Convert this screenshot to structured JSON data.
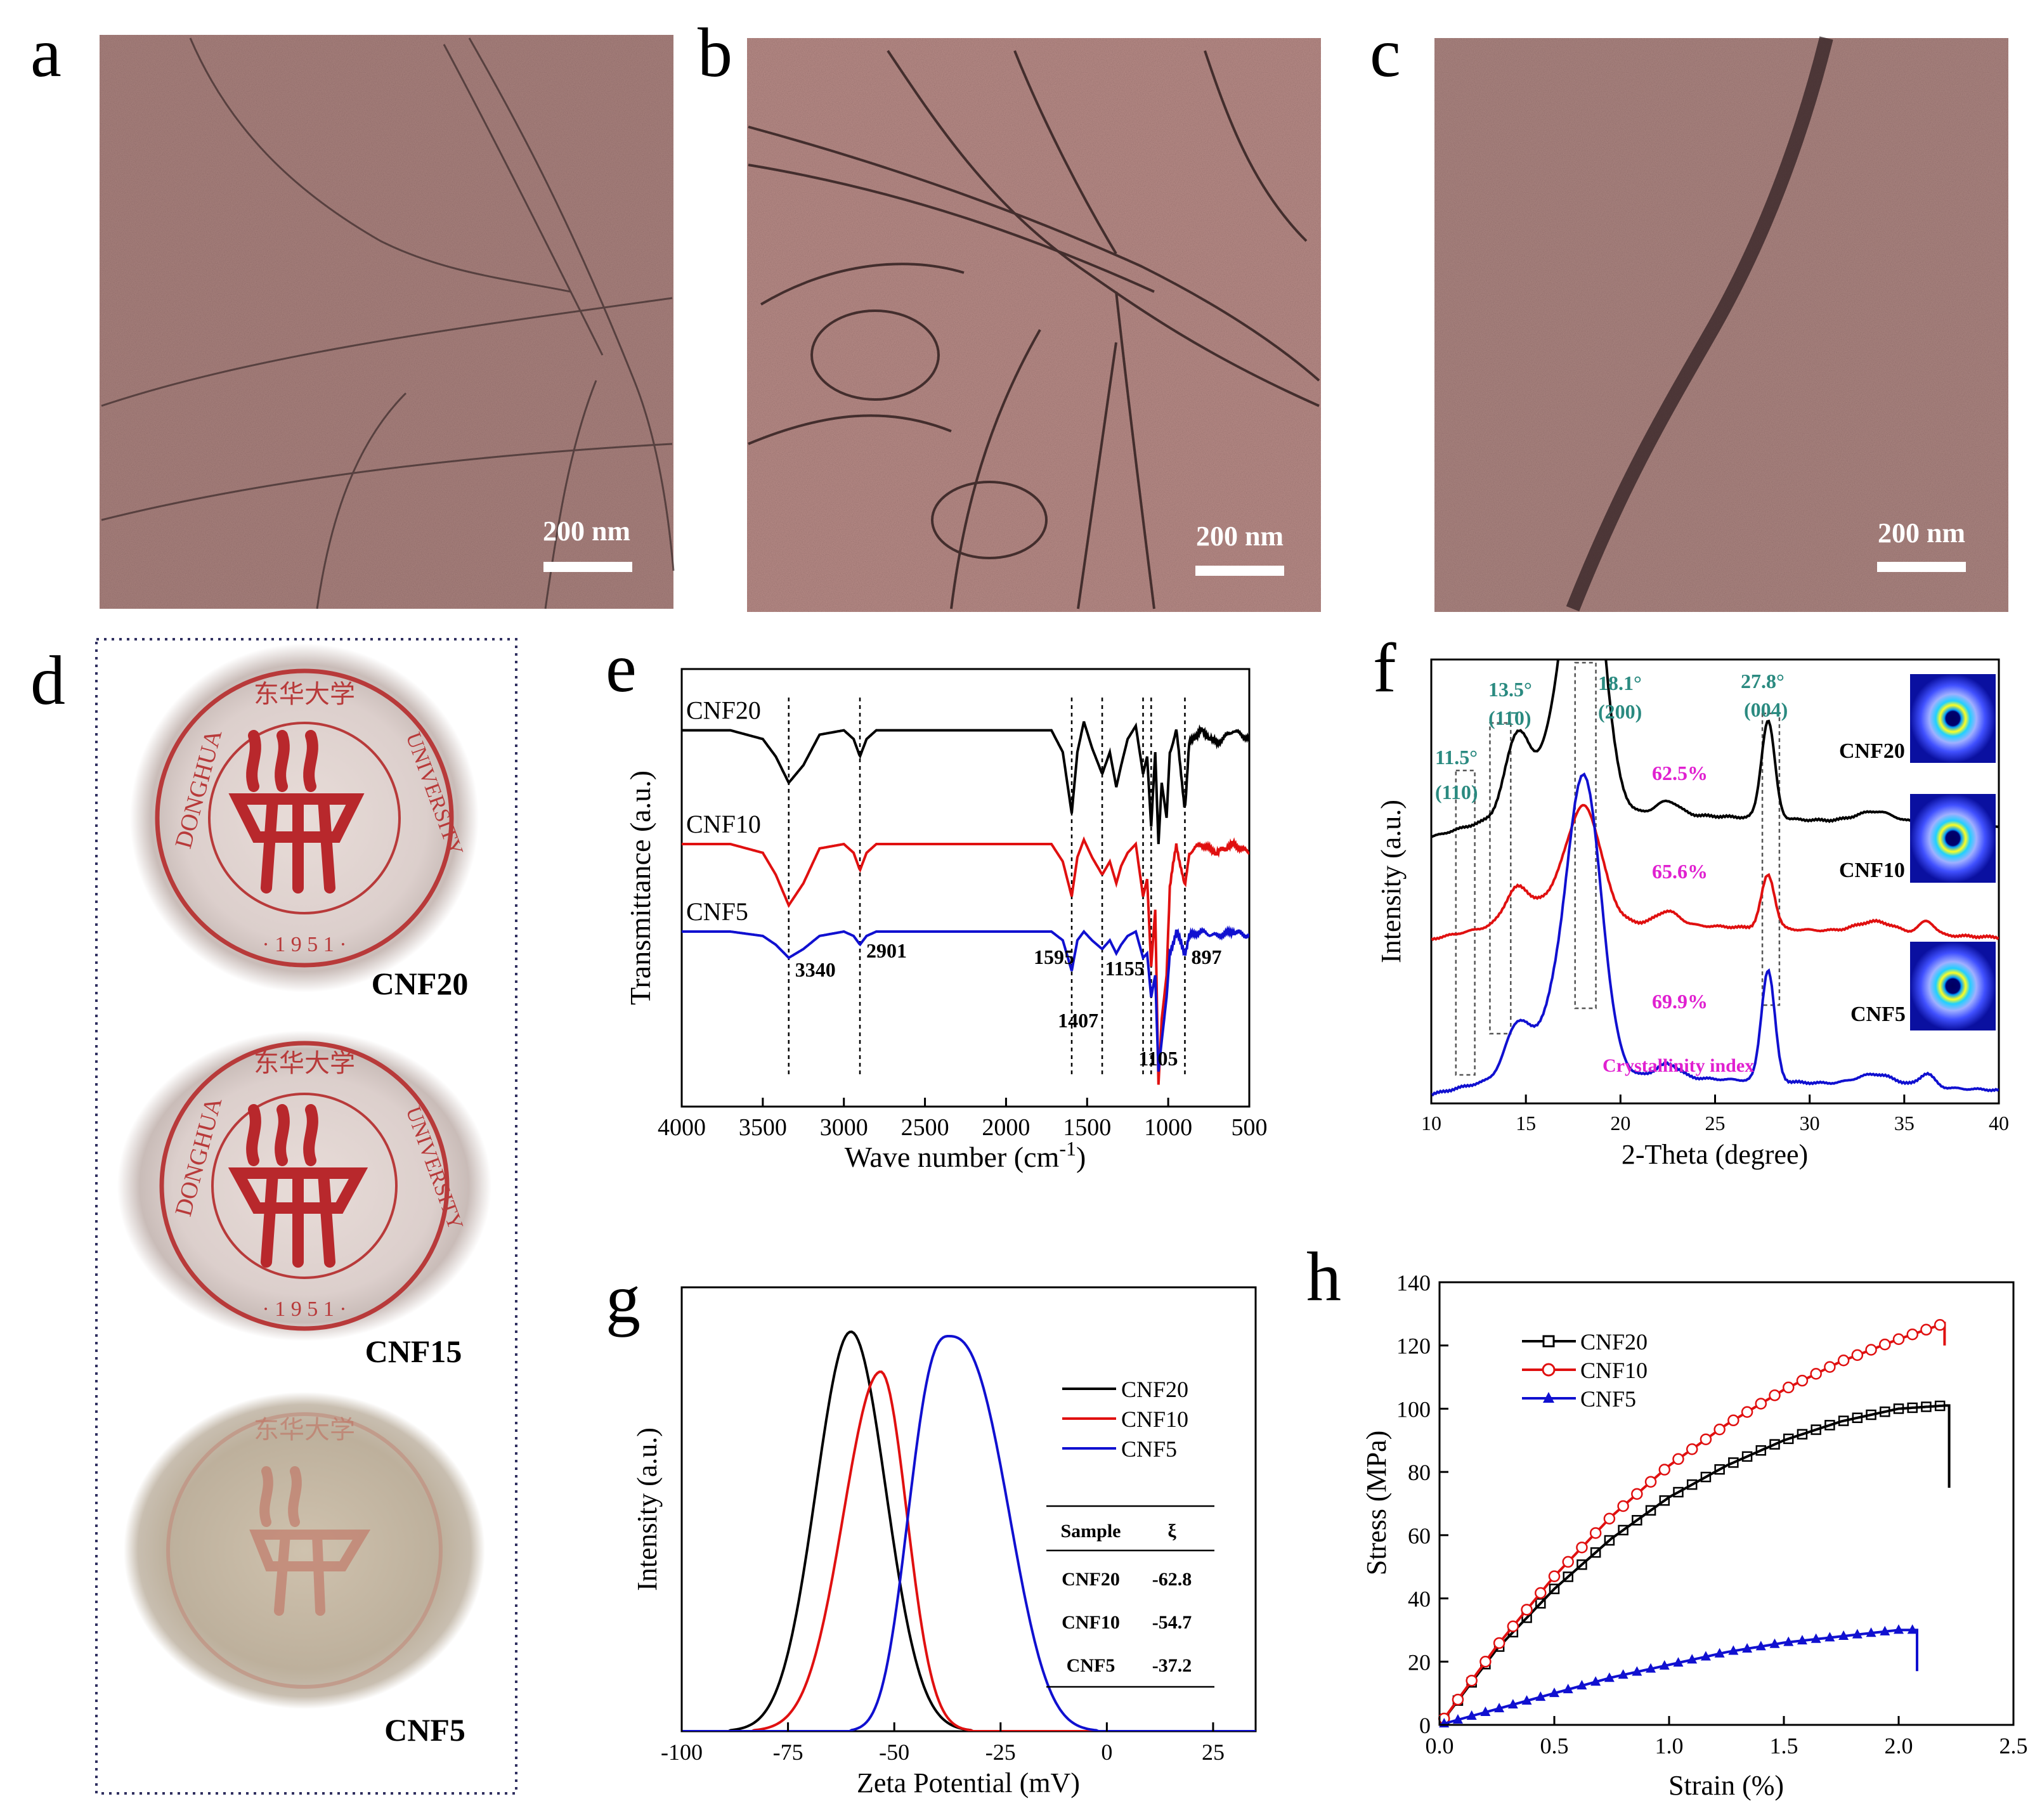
{
  "panel_letters": [
    "a",
    "b",
    "c",
    "d",
    "e",
    "f",
    "g",
    "h"
  ],
  "tem": [
    {
      "id": "a",
      "scale_bar": "200 nm"
    },
    {
      "id": "b",
      "scale_bar": "200 nm"
    },
    {
      "id": "c",
      "scale_bar": "200 nm"
    }
  ],
  "photos": {
    "items": [
      {
        "label": "CNF20",
        "seal_top": "东华大学",
        "seal_left": "DONGHUA",
        "seal_right": "UNIVERSITY",
        "seal_year": "· 1 9 5 1 ·"
      },
      {
        "label": "CNF15",
        "seal_top": "东华大学",
        "seal_left": "DONGHUA",
        "seal_right": "UNIVERSITY",
        "seal_year": "· 1 9 5 1 ·"
      },
      {
        "label": "CNF5",
        "seal_top": "东华大学",
        "seal_left": "",
        "seal_right": "",
        "seal_year": ""
      }
    ]
  },
  "chart_data": [
    {
      "panel": "e",
      "type": "line",
      "xlabel": "Wave number (cm",
      "xlabel_sup": "-1",
      "xlabel_close": ")",
      "ylabel": "Transmittance (a.u.)",
      "xlim": [
        4000,
        500
      ],
      "xticks": [
        4000,
        3500,
        3000,
        2500,
        2000,
        1500,
        1000,
        500
      ],
      "series": [
        {
          "name": "CNF20",
          "color": "#000000",
          "offset": 0.86,
          "profile": [
            [
              4000,
              0
            ],
            [
              3700,
              0
            ],
            [
              3500,
              -0.02
            ],
            [
              3420,
              -0.06
            ],
            [
              3340,
              -0.12
            ],
            [
              3250,
              -0.08
            ],
            [
              3150,
              -0.01
            ],
            [
              3000,
              0
            ],
            [
              2940,
              -0.02
            ],
            [
              2901,
              -0.06
            ],
            [
              2860,
              -0.02
            ],
            [
              2800,
              0
            ],
            [
              1720,
              0
            ],
            [
              1650,
              -0.05
            ],
            [
              1595,
              -0.19
            ],
            [
              1560,
              -0.05
            ],
            [
              1520,
              0.02
            ],
            [
              1470,
              -0.04
            ],
            [
              1407,
              -0.1
            ],
            [
              1360,
              -0.05
            ],
            [
              1320,
              -0.13
            ],
            [
              1290,
              -0.08
            ],
            [
              1250,
              -0.02
            ],
            [
              1200,
              0.01
            ],
            [
              1155,
              -0.1
            ],
            [
              1130,
              -0.06
            ],
            [
              1105,
              -0.22
            ],
            [
              1080,
              -0.05
            ],
            [
              1060,
              -0.26
            ],
            [
              1040,
              -0.12
            ],
            [
              1010,
              -0.2
            ],
            [
              990,
              -0.05
            ],
            [
              950,
              0.0
            ],
            [
              897,
              -0.18
            ],
            [
              870,
              -0.03
            ],
            [
              800,
              0
            ],
            [
              700,
              -0.03
            ],
            [
              600,
              0.0
            ],
            [
              500,
              -0.02
            ]
          ]
        },
        {
          "name": "CNF10",
          "color": "#e01010",
          "offset": 0.6,
          "profile": [
            [
              4000,
              0
            ],
            [
              3700,
              0
            ],
            [
              3500,
              -0.02
            ],
            [
              3420,
              -0.07
            ],
            [
              3340,
              -0.14
            ],
            [
              3250,
              -0.09
            ],
            [
              3150,
              -0.01
            ],
            [
              3000,
              0
            ],
            [
              2940,
              -0.02
            ],
            [
              2901,
              -0.06
            ],
            [
              2860,
              -0.02
            ],
            [
              2800,
              0
            ],
            [
              1720,
              0
            ],
            [
              1650,
              -0.04
            ],
            [
              1595,
              -0.12
            ],
            [
              1560,
              -0.03
            ],
            [
              1520,
              0.01
            ],
            [
              1470,
              -0.03
            ],
            [
              1407,
              -0.07
            ],
            [
              1360,
              -0.04
            ],
            [
              1320,
              -0.09
            ],
            [
              1290,
              -0.05
            ],
            [
              1250,
              -0.02
            ],
            [
              1200,
              0.0
            ],
            [
              1155,
              -0.12
            ],
            [
              1130,
              -0.08
            ],
            [
              1105,
              -0.28
            ],
            [
              1080,
              -0.15
            ],
            [
              1060,
              -0.55
            ],
            [
              1040,
              -0.4
            ],
            [
              1010,
              -0.3
            ],
            [
              990,
              -0.1
            ],
            [
              950,
              0.0
            ],
            [
              897,
              -0.1
            ],
            [
              870,
              -0.02
            ],
            [
              800,
              0
            ],
            [
              700,
              -0.02
            ],
            [
              600,
              0.0
            ],
            [
              500,
              -0.02
            ]
          ]
        },
        {
          "name": "CNF5",
          "color": "#1010d0",
          "offset": 0.4,
          "profile": [
            [
              4000,
              0
            ],
            [
              3700,
              0
            ],
            [
              3500,
              -0.01
            ],
            [
              3420,
              -0.03
            ],
            [
              3340,
              -0.06
            ],
            [
              3250,
              -0.04
            ],
            [
              3150,
              -0.01
            ],
            [
              3000,
              0
            ],
            [
              2940,
              -0.01
            ],
            [
              2901,
              -0.03
            ],
            [
              2860,
              -0.01
            ],
            [
              2800,
              0
            ],
            [
              1720,
              0
            ],
            [
              1650,
              -0.02
            ],
            [
              1595,
              -0.09
            ],
            [
              1560,
              -0.02
            ],
            [
              1520,
              0.0
            ],
            [
              1470,
              -0.02
            ],
            [
              1407,
              -0.04
            ],
            [
              1360,
              -0.02
            ],
            [
              1320,
              -0.05
            ],
            [
              1290,
              -0.03
            ],
            [
              1250,
              -0.01
            ],
            [
              1200,
              0.0
            ],
            [
              1155,
              -0.06
            ],
            [
              1130,
              -0.05
            ],
            [
              1105,
              -0.15
            ],
            [
              1080,
              -0.1
            ],
            [
              1060,
              -0.32
            ],
            [
              1040,
              -0.25
            ],
            [
              1010,
              -0.15
            ],
            [
              990,
              -0.05
            ],
            [
              950,
              0.0
            ],
            [
              897,
              -0.05
            ],
            [
              870,
              -0.01
            ],
            [
              800,
              0
            ],
            [
              700,
              -0.01
            ],
            [
              600,
              0.0
            ],
            [
              500,
              -0.01
            ]
          ]
        }
      ],
      "annotations": [
        {
          "text": "3340",
          "x": 3340
        },
        {
          "text": "2901",
          "x": 2901
        },
        {
          "text": "1595",
          "x": 1595
        },
        {
          "text": "1407",
          "x": 1407
        },
        {
          "text": "1155",
          "x": 1155
        },
        {
          "text": "1105",
          "x": 1105
        },
        {
          "text": "897",
          "x": 897
        }
      ],
      "vlines": [
        3340,
        2901,
        1595,
        1407,
        1155,
        1105,
        897
      ]
    },
    {
      "panel": "f",
      "type": "line",
      "xlabel": "2-Theta (degree)",
      "ylabel": "Intensity (a.u.)",
      "xlim": [
        10,
        40
      ],
      "xticks": [
        10,
        15,
        20,
        25,
        30,
        35,
        40
      ],
      "series": [
        {
          "name": "CNF20",
          "color": "#000000",
          "offset": 0.6,
          "peak_main": 0.75,
          "peak_15": 0.16,
          "peak_28": 0.22,
          "slope": 0.12
        },
        {
          "name": "CNF10",
          "color": "#e01010",
          "offset": 0.37,
          "peak_main": 0.25,
          "peak_15": 0.07,
          "peak_28": 0.12,
          "slope": 0.09
        },
        {
          "name": "CNF5",
          "color": "#1010d0",
          "offset": 0.02,
          "peak_main": 0.65,
          "peak_15": 0.1,
          "peak_28": 0.25,
          "slope": 0.1
        }
      ],
      "peak_labels": [
        {
          "angle": "11.5°",
          "plane": "(110)",
          "x": 11.5
        },
        {
          "angle": "13.5°",
          "plane": "(11̄0)",
          "x": 13.5
        },
        {
          "angle": "18.1°",
          "plane": "(200)",
          "x": 18.1
        },
        {
          "angle": "27.8°",
          "plane": "(004)",
          "x": 27.8
        }
      ],
      "crystallinity": [
        {
          "sample": "CNF20",
          "value": "62.5%"
        },
        {
          "sample": "CNF10",
          "value": "65.6%"
        },
        {
          "sample": "CNF5",
          "value": "69.9%"
        }
      ],
      "crystallinity_label": "Crystallinity index",
      "highlight_colors": {
        "peak": "#2a8a80",
        "crystallinity": "#e020d0"
      }
    },
    {
      "panel": "g",
      "type": "line",
      "xlabel": "Zeta Potential (mV)",
      "ylabel": "Intensity  (a.u.)",
      "xlim": [
        -100,
        35
      ],
      "xticks": [
        -100,
        -75,
        -50,
        -25,
        0,
        25
      ],
      "series": [
        {
          "name": "CNF20",
          "color": "#000000",
          "mean": -62.8
        },
        {
          "name": "CNF10",
          "color": "#e01010",
          "mean": -54.7
        },
        {
          "name": "CNF5",
          "color": "#1010d0",
          "mean": -37.2
        }
      ],
      "table": {
        "headers": [
          "Sample",
          "ξ"
        ],
        "rows": [
          [
            "CNF20",
            "-62.8"
          ],
          [
            "CNF10",
            "-54.7"
          ],
          [
            "CNF5",
            "-37.2"
          ]
        ]
      }
    },
    {
      "panel": "h",
      "type": "line",
      "xlabel": "Strain (%)",
      "ylabel": "Stress (MPa)",
      "xlim": [
        0,
        2.5
      ],
      "ylim": [
        0,
        140
      ],
      "xticks": [
        0.0,
        0.5,
        1.0,
        1.5,
        2.0,
        2.5
      ],
      "yticks": [
        0,
        20,
        40,
        60,
        80,
        100,
        120,
        140
      ],
      "series": [
        {
          "name": "CNF20",
          "color": "#000000",
          "marker": "square",
          "points": [
            [
              0,
              0
            ],
            [
              0.25,
              24
            ],
            [
              0.5,
              43
            ],
            [
              0.75,
              59
            ],
            [
              1.0,
              72
            ],
            [
              1.25,
              82
            ],
            [
              1.5,
              90
            ],
            [
              1.75,
              96
            ],
            [
              2.0,
              100
            ],
            [
              2.2,
              101
            ]
          ],
          "fracture": [
            2.22,
            75
          ]
        },
        {
          "name": "CNF10",
          "color": "#e01010",
          "marker": "circle",
          "points": [
            [
              0,
              0
            ],
            [
              0.25,
              25
            ],
            [
              0.5,
              47
            ],
            [
              0.75,
              66
            ],
            [
              1.0,
              82
            ],
            [
              1.25,
              95
            ],
            [
              1.5,
              106
            ],
            [
              1.75,
              115
            ],
            [
              2.0,
              122
            ],
            [
              2.2,
              127
            ]
          ],
          "fracture": [
            2.2,
            120
          ]
        },
        {
          "name": "CNF5",
          "color": "#1010d0",
          "marker": "triangle",
          "points": [
            [
              0,
              0
            ],
            [
              0.25,
              5
            ],
            [
              0.5,
              10
            ],
            [
              0.75,
              15
            ],
            [
              1.0,
              19
            ],
            [
              1.25,
              23
            ],
            [
              1.5,
              26
            ],
            [
              1.75,
              28
            ],
            [
              2.0,
              30
            ],
            [
              2.08,
              30
            ]
          ],
          "fracture": [
            2.08,
            17
          ]
        }
      ]
    }
  ]
}
